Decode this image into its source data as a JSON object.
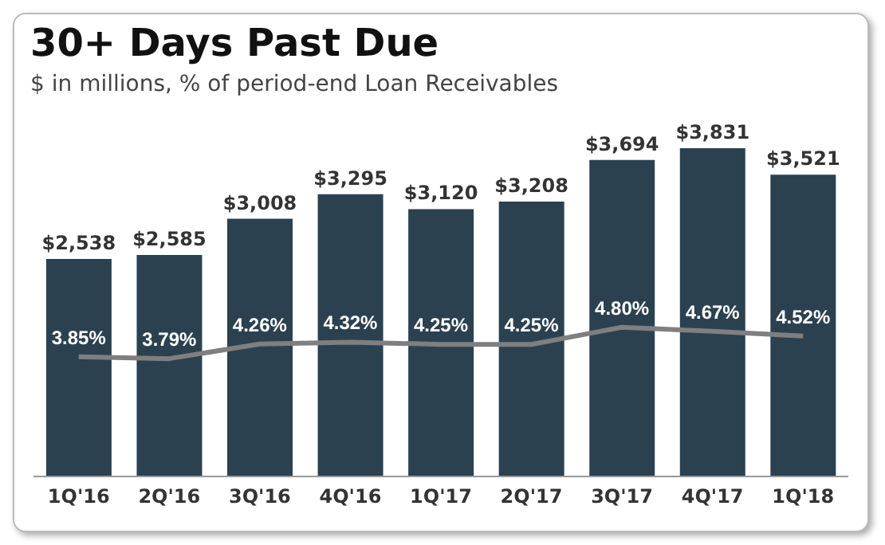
{
  "chart_data": {
    "type": "bar",
    "title": "30+ Days Past Due",
    "subtitle": "$ in millions, % of period-end Loan Receivables",
    "categories": [
      "1Q'16",
      "2Q'16",
      "3Q'16",
      "4Q'16",
      "1Q'17",
      "2Q'17",
      "3Q'17",
      "4Q'17",
      "1Q'18"
    ],
    "series": [
      {
        "color": "#2b4150",
        "values": [
          2538,
          2585,
          3008,
          3295,
          3120,
          3208,
          3694,
          3831,
          3521
        ],
        "value_labels": [
          "$2,538",
          "$2,585",
          "$3,008",
          "$3,295",
          "$3,120",
          "$3,208",
          "$3,694",
          "$3,831",
          "$3,521"
        ]
      },
      {
        "type": "line",
        "axis": "y2",
        "color": "#7f7f7f",
        "values": [
          3.85,
          3.79,
          4.26,
          4.32,
          4.25,
          4.25,
          4.8,
          4.67,
          4.52
        ],
        "value_labels": [
          "3.85%",
          "3.79%",
          "4.26%",
          "4.32%",
          "4.25%",
          "4.25%",
          "4.80%",
          "4.67%",
          "4.52%"
        ]
      }
    ],
    "legend": false,
    "grid": false,
    "tick_labels": "x",
    "marker": "none"
  }
}
